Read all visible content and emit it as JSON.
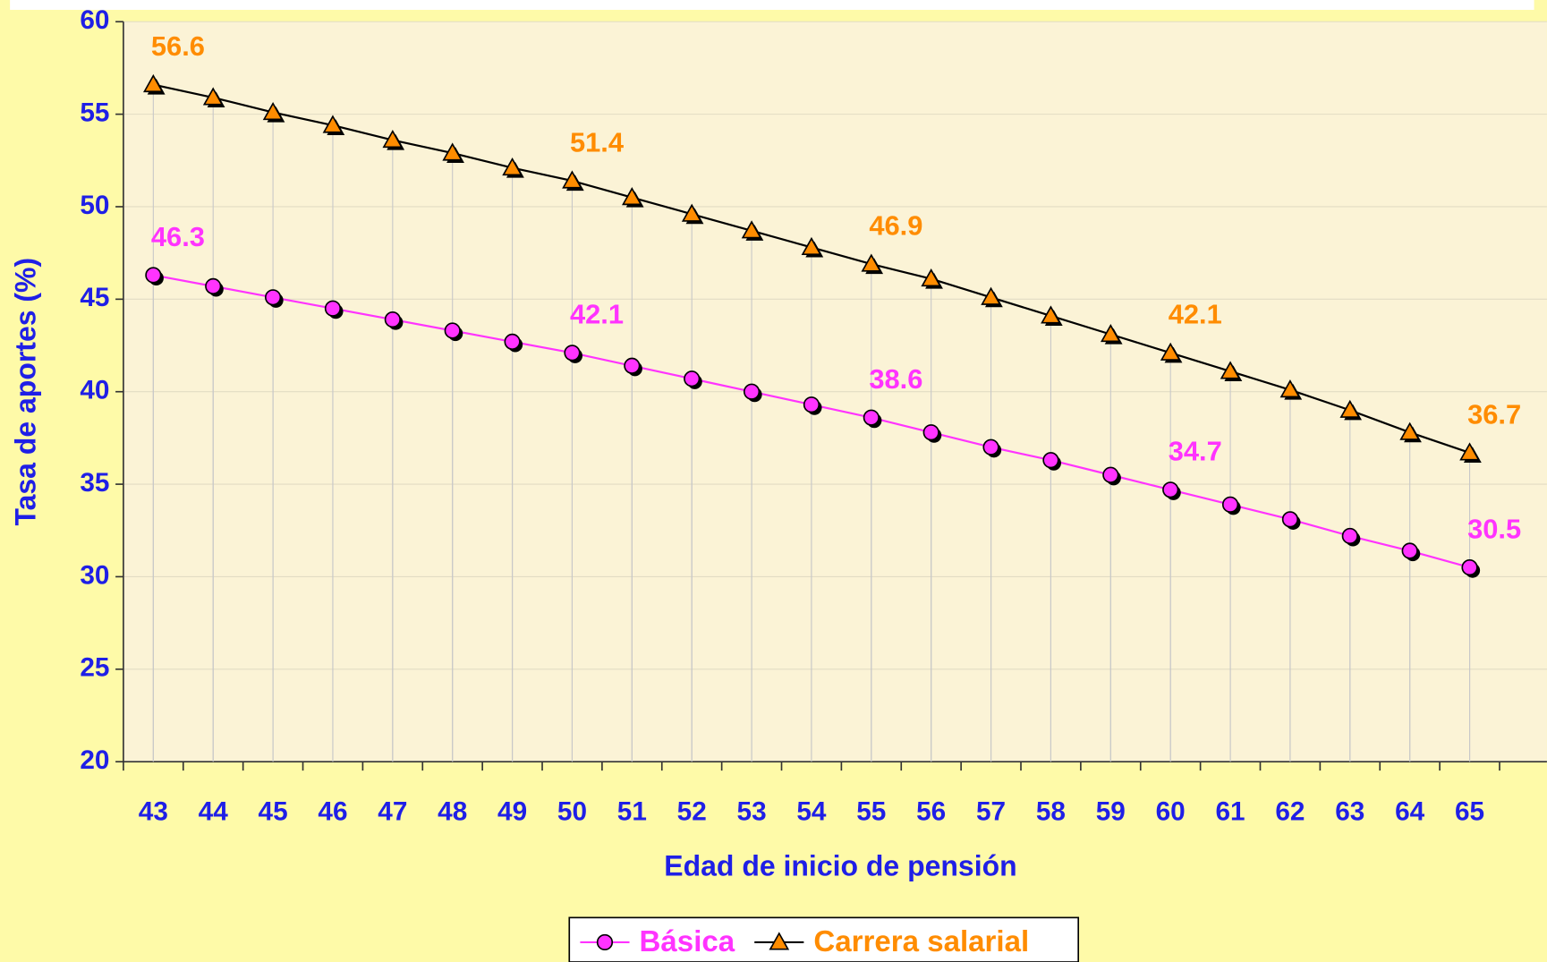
{
  "chart_data": {
    "type": "line",
    "x_label": "Edad de inicio de pensión",
    "y_label": "Tasa de aportes (%)",
    "categories": [
      "43",
      "44",
      "45",
      "46",
      "47",
      "48",
      "49",
      "50",
      "51",
      "52",
      "53",
      "54",
      "55",
      "56",
      "57",
      "58",
      "59",
      "60",
      "61",
      "62",
      "63",
      "64",
      "65"
    ],
    "series": [
      {
        "name": "Básica",
        "color": "#ff33ff",
        "marker_color": "#ff33ff",
        "marker": "circle",
        "values": [
          46.3,
          45.7,
          45.1,
          44.5,
          43.9,
          43.3,
          42.7,
          42.1,
          41.4,
          40.7,
          40.0,
          39.3,
          38.6,
          37.8,
          37.0,
          36.3,
          35.5,
          34.7,
          33.9,
          33.1,
          32.2,
          31.4,
          30.5
        ],
        "value_labels": [
          "46.3",
          null,
          null,
          null,
          null,
          null,
          null,
          "42.1",
          null,
          null,
          null,
          null,
          "38.6",
          null,
          null,
          null,
          null,
          "34.7",
          null,
          null,
          null,
          null,
          "30.5"
        ]
      },
      {
        "name": "Carrera salarial",
        "color": "#000000",
        "marker_color": "#ff8c00",
        "marker": "triangle",
        "values": [
          56.6,
          55.9,
          55.1,
          54.4,
          53.6,
          52.9,
          52.1,
          51.4,
          50.5,
          49.6,
          48.7,
          47.8,
          46.9,
          46.1,
          45.1,
          44.1,
          43.1,
          42.1,
          41.1,
          40.1,
          39.0,
          37.8,
          36.7
        ],
        "value_labels": [
          "56.6",
          null,
          null,
          null,
          null,
          null,
          null,
          "51.4",
          null,
          null,
          null,
          null,
          "46.9",
          null,
          null,
          null,
          null,
          "42.1",
          null,
          null,
          null,
          null,
          "36.7"
        ]
      }
    ],
    "ylim": [
      20,
      60
    ],
    "yticks": [
      20,
      25,
      30,
      35,
      40,
      45,
      50,
      55,
      60
    ],
    "grid": true,
    "drop_lines": true,
    "legend": "bottom"
  }
}
